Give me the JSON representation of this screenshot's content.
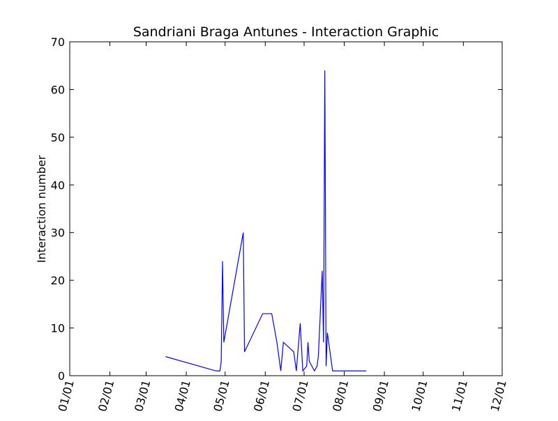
{
  "chart_data": {
    "type": "line",
    "title": "Sandriani Braga Antunes - Interaction Graphic",
    "xlabel": "",
    "ylabel": "Interaction number",
    "xlim": [
      "01-01",
      "12-01"
    ],
    "ylim": [
      0,
      70
    ],
    "x_tick_labels": [
      "01/01",
      "02/01",
      "03/01",
      "04/01",
      "05/01",
      "06/01",
      "07/01",
      "08/01",
      "09/01",
      "10/01",
      "11/01",
      "12/01"
    ],
    "y_tick_labels": [
      "0",
      "10",
      "20",
      "30",
      "40",
      "50",
      "60",
      "70"
    ],
    "grid": false,
    "legend": "none",
    "series": [
      {
        "color": "#0000ff",
        "x": [
          "03-16",
          "04-24",
          "04-27",
          "04-28",
          "04-29",
          "04-30",
          "05-15",
          "05-16",
          "05-30",
          "06-06",
          "06-10",
          "06-13",
          "06-15",
          "06-23",
          "06-25",
          "06-28",
          "06-30",
          "07-03",
          "07-04",
          "07-05",
          "07-09",
          "07-11",
          "07-12",
          "07-15",
          "07-16",
          "07-17",
          "07-18",
          "07-19",
          "07-20",
          "07-23",
          "08-18"
        ],
        "values": [
          4,
          1,
          1,
          3,
          24,
          7,
          30,
          5,
          13,
          13,
          7,
          1,
          7,
          5,
          1,
          11,
          1,
          2,
          7,
          3,
          1,
          2,
          4,
          22,
          7,
          64,
          2,
          9,
          7,
          1,
          1
        ]
      }
    ]
  }
}
